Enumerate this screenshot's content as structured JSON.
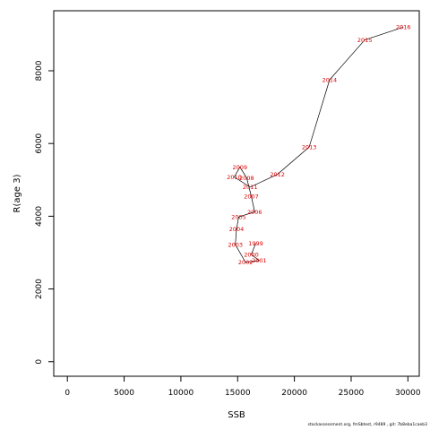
{
  "chart_data": {
    "type": "line",
    "xlabel": "SSB",
    "ylabel": "R(age 3)",
    "xlim": [
      -1200,
      31000
    ],
    "ylim": [
      -400,
      9650
    ],
    "xticks": [
      0,
      5000,
      10000,
      15000,
      20000,
      25000,
      30000
    ],
    "yticks": [
      0,
      2000,
      4000,
      6000,
      8000
    ],
    "points": [
      {
        "label": "1999",
        "x": 16600,
        "y": 3250
      },
      {
        "label": "2000",
        "x": 16200,
        "y": 2950
      },
      {
        "label": "2001",
        "x": 16900,
        "y": 2780
      },
      {
        "label": "2002",
        "x": 15700,
        "y": 2730
      },
      {
        "label": "2003",
        "x": 14800,
        "y": 3220
      },
      {
        "label": "2004",
        "x": 14900,
        "y": 3650
      },
      {
        "label": "2005",
        "x": 15100,
        "y": 3980
      },
      {
        "label": "2006",
        "x": 16500,
        "y": 4120
      },
      {
        "label": "2007",
        "x": 16200,
        "y": 4550
      },
      {
        "label": "2008",
        "x": 15800,
        "y": 5050
      },
      {
        "label": "2009",
        "x": 15200,
        "y": 5350
      },
      {
        "label": "2010",
        "x": 14700,
        "y": 5080
      },
      {
        "label": "2011",
        "x": 16100,
        "y": 4800
      },
      {
        "label": "2012",
        "x": 18500,
        "y": 5150
      },
      {
        "label": "2013",
        "x": 21300,
        "y": 5900
      },
      {
        "label": "2014",
        "x": 23100,
        "y": 7750
      },
      {
        "label": "2015",
        "x": 26200,
        "y": 8850
      },
      {
        "label": "2016",
        "x": 29600,
        "y": 9200
      }
    ]
  },
  "footer": "stockassessment.org, fmSbtest, r9489 , git: 7b8eba1caeb3"
}
